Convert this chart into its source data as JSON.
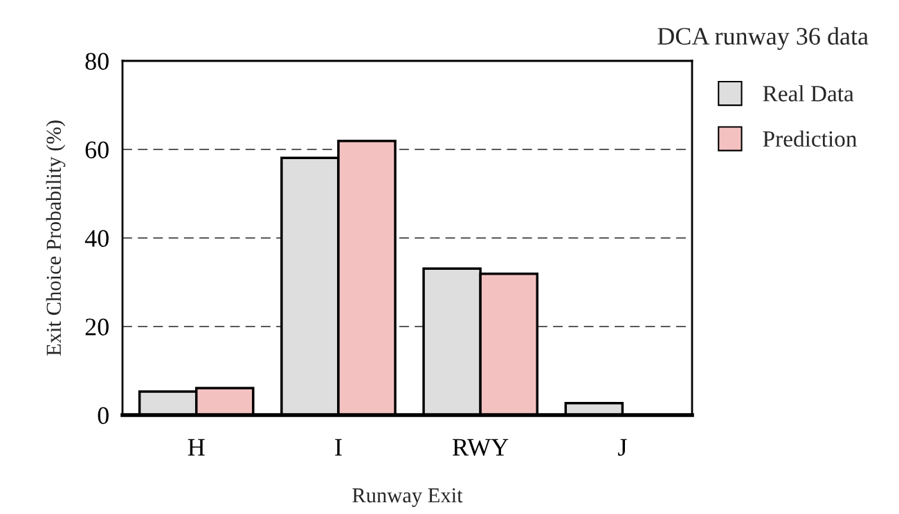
{
  "chart_data": {
    "type": "bar",
    "title": "DCA runway 36 data",
    "xlabel": "Runway Exit",
    "ylabel": "Exit Choice Probability (%)",
    "categories": [
      "H",
      "I",
      "RWY",
      "J"
    ],
    "series": [
      {
        "name": "Real Data",
        "color": "#dedede",
        "values": [
          5.3,
          58.1,
          33.1,
          2.7
        ]
      },
      {
        "name": "Prediction",
        "color": "#f4c1c1",
        "values": [
          6.1,
          61.9,
          31.9,
          null
        ]
      }
    ],
    "ylim": [
      0,
      80
    ],
    "yticks": [
      0,
      20,
      40,
      60,
      80
    ],
    "grid": "y",
    "legend": "right"
  }
}
